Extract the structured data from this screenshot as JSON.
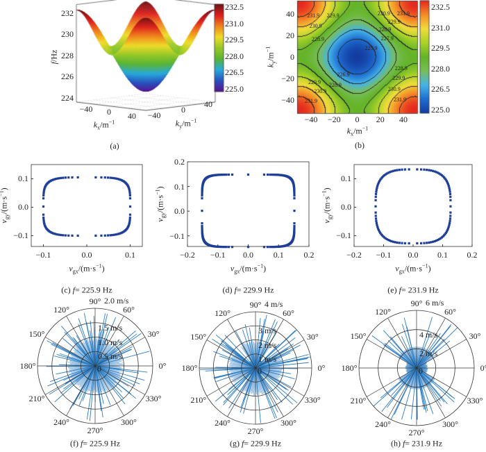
{
  "chart_data": [
    {
      "id": "a",
      "type": "surface3d",
      "caption": "(a)",
      "function_range": [
        225.0,
        232.5
      ],
      "xlabel": {
        "var": "k",
        "sub": "x",
        "unit": "/m",
        "sup": "−1"
      },
      "ylabel": {
        "var": "k",
        "sub": "y",
        "unit": "/m",
        "sup": "−1"
      },
      "zlabel": {
        "var": "f",
        "unit": "/Hz"
      },
      "xticks": [
        "−40",
        "0",
        "40"
      ],
      "yticks": [
        "−40",
        "0",
        "40"
      ],
      "zticks": [
        "224",
        "226",
        "228",
        "230",
        "232"
      ],
      "xlim": [
        -50,
        50
      ],
      "ylim": [
        -50,
        50
      ],
      "zlim": [
        224,
        233
      ],
      "colorbar_ticks": [
        "232.5",
        "231.0",
        "229.5",
        "228.0",
        "226.5",
        "225.0"
      ]
    },
    {
      "id": "b",
      "type": "heatmap",
      "caption": "(b)",
      "xlabel": {
        "var": "k",
        "sub": "x",
        "unit": "/m",
        "sup": "−1"
      },
      "ylabel": {
        "var": "k",
        "sub": "y",
        "unit": "/m",
        "sup": "−1"
      },
      "xticks": [
        "−40",
        "−20",
        "0",
        "20",
        "40"
      ],
      "yticks": [
        "40",
        "20",
        "0",
        "−20",
        "−40"
      ],
      "xlim": [
        -52,
        52
      ],
      "ylim": [
        -52,
        52
      ],
      "value_range": [
        225.0,
        232.5
      ],
      "contour_levels": [
        225.9,
        226.9,
        227.9,
        228.9,
        229.9,
        230.9,
        231.9
      ],
      "contour_labels": [
        "231.9",
        "229.9",
        "230.9",
        "228.9",
        "231.9",
        "230.9",
        "229.9",
        "228.9",
        "227.9",
        "225.9",
        "226.9",
        "229.9",
        "228.9",
        "230.9",
        "231.9",
        "228.9",
        "229.9",
        "230.9",
        "231.9"
      ],
      "colorbar_ticks": [
        "232.5",
        "231.0",
        "229.5",
        "228.0",
        "226.5",
        "225.0"
      ]
    },
    {
      "id": "c",
      "type": "scatter",
      "caption": {
        "prefix": "(c)",
        "var": "f",
        "rest": "= 225.9 Hz"
      },
      "xlabel": {
        "var": "v",
        "sub": "gx",
        "unit": "/(m·s",
        "sup": "−1",
        "tail": ")"
      },
      "ylabel": {
        "var": "v",
        "sub": "gy",
        "unit": "/(m·s",
        "sup": "−1",
        "tail": ")"
      },
      "xticks": [
        "−0.1",
        "0.0",
        "0.1"
      ],
      "xtick_values": [
        -0.1,
        0,
        0.1
      ],
      "yticks": [
        "0.1",
        "0.0",
        "−0.1"
      ],
      "ytick_values": [
        0.1,
        0,
        -0.1
      ],
      "xlim": [
        -0.128,
        0.128
      ],
      "ylim": [
        -0.138,
        0.15
      ],
      "curve_extent": {
        "x": [
          -0.1,
          0.1
        ],
        "y": [
          -0.1,
          0.105
        ]
      },
      "marker_color": "#1f3f99"
    },
    {
      "id": "d",
      "type": "scatter",
      "caption": {
        "prefix": "(d)",
        "var": "f",
        "rest": "= 229.9 Hz"
      },
      "xlabel": {
        "var": "v",
        "sub": "gx",
        "unit": "/(m·s",
        "sup": "−1",
        "tail": ")"
      },
      "ylabel": {
        "var": "v",
        "sub": "gy",
        "unit": "/(m·s",
        "sup": "−1",
        "tail": ")"
      },
      "xticks": [
        "−0.2",
        "−0.1",
        "0.0",
        "0.1",
        "0.2"
      ],
      "xtick_values": [
        -0.2,
        -0.1,
        0,
        0.1,
        0.2
      ],
      "yticks": [
        "0.2",
        "0.1",
        "0.0",
        "−0.1"
      ],
      "ytick_values": [
        0.2,
        0.1,
        0,
        -0.1
      ],
      "xlim": [
        -0.2,
        0.2
      ],
      "ylim": [
        -0.143,
        0.2
      ],
      "curve_extent": {
        "x": [
          -0.152,
          0.152
        ],
        "y": [
          -0.145,
          0.148
        ]
      },
      "marker_color": "#1f3f99"
    },
    {
      "id": "e",
      "type": "scatter",
      "caption": {
        "prefix": "(e)",
        "var": "f",
        "rest": "= 231.9 Hz"
      },
      "xlabel": {
        "var": "v",
        "sub": "gx",
        "unit": "/(m·s",
        "sup": "−1",
        "tail": ")"
      },
      "ylabel": {
        "var": "v",
        "sub": "gy",
        "unit": "/(m·s",
        "sup": "−1",
        "tail": ")"
      },
      "xticks": [
        "−0.2",
        "−0.1",
        "0.0",
        "0.1",
        "0.2"
      ],
      "xtick_values": [
        -0.2,
        -0.1,
        0,
        0.1,
        0.2
      ],
      "yticks": [
        "0.1",
        "0.0",
        "−0.1"
      ],
      "ytick_values": [
        0.1,
        0,
        -0.1
      ],
      "xlim": [
        -0.2,
        0.2
      ],
      "ylim": [
        -0.138,
        0.15
      ],
      "curve_extent": {
        "x": [
          -0.127,
          0.127
        ],
        "y": [
          -0.127,
          0.133
        ]
      },
      "marker_color": "#1f3f99"
    },
    {
      "id": "f",
      "type": "polar",
      "caption": {
        "prefix": "(f)",
        "var": "f",
        "rest": "= 225.9 Hz"
      },
      "rmax": 2.0,
      "rings": [
        0.5,
        1.0,
        1.5,
        2.0
      ],
      "ring_labels": [
        "0",
        "0.5 m/s",
        "1.0 m/s",
        "1.5 m/s",
        "2.0 m/s"
      ],
      "angle_labels": [
        "0°",
        "30°",
        "60°",
        "90°",
        "120°",
        "150°",
        "180°",
        "210°",
        "240°",
        "270°",
        "300°",
        "330°"
      ],
      "line_color": "#2a7cc4"
    },
    {
      "id": "g",
      "type": "polar",
      "caption": {
        "prefix": "(g)",
        "var": "f",
        "rest": "= 229.9 Hz"
      },
      "rmax": 4,
      "rings": [
        1,
        2,
        3,
        4
      ],
      "ring_labels": [
        "0",
        "1 m/s",
        "2 m/s",
        "3 m/s",
        "4 m/s"
      ],
      "angle_labels": [
        "0°",
        "30°",
        "60°",
        "90°",
        "120°",
        "150°",
        "180°",
        "210°",
        "240°",
        "270°",
        "300°",
        "330°"
      ],
      "line_color": "#2a7cc4"
    },
    {
      "id": "h",
      "type": "polar",
      "caption": {
        "prefix": "(h)",
        "var": "f",
        "rest": "= 231.9 Hz"
      },
      "rmax": 6,
      "rings": [
        2,
        4,
        6
      ],
      "ring_labels": [
        "0",
        "2 m/s",
        "4 m/s",
        "6 m/s"
      ],
      "angle_labels": [
        "0°",
        "30°",
        "60°",
        "90°",
        "120°",
        "150°",
        "180°",
        "210°",
        "240°",
        "270°",
        "300°",
        "330°"
      ],
      "line_color": "#2a7cc4"
    }
  ]
}
